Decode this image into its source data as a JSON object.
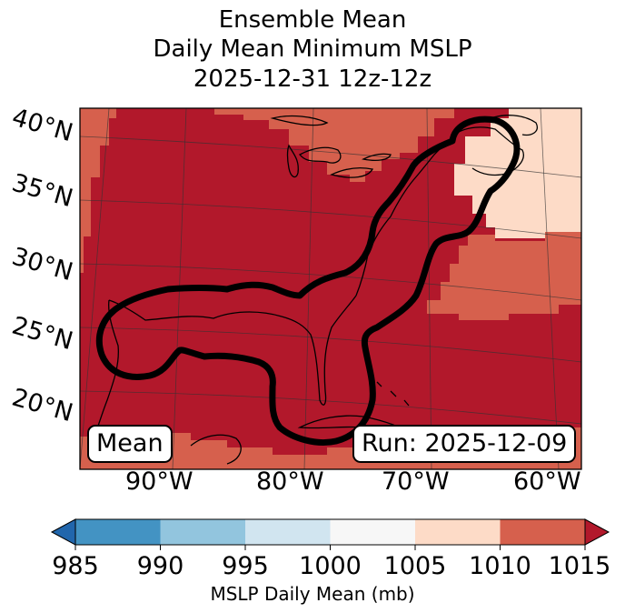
{
  "title": {
    "line1": "Ensemble Mean",
    "line2": "Daily Mean Minimum MSLP",
    "line3": "2025-12-31 12z-12z"
  },
  "map": {
    "lat_labels": [
      "40°N",
      "35°N",
      "30°N",
      "25°N",
      "20°N"
    ],
    "lon_labels": [
      "90°W",
      "80°W",
      "70°W",
      "60°W"
    ],
    "mean_badge": "Mean",
    "run_badge": "Run: 2025-12-09",
    "colors": {
      "band_1010_1015": "#b2182b",
      "band_1005_1010": "#d6604d",
      "band_1000_1005": "#fddbc7",
      "land_outline": "#000000",
      "contour": "#000000"
    }
  },
  "colorbar": {
    "ticks": [
      "985",
      "990",
      "995",
      "1000",
      "1005",
      "1010",
      "1015"
    ],
    "label": "MSLP Daily Mean (mb)",
    "colors": [
      "#2166ac",
      "#4393c3",
      "#92c5de",
      "#d1e5f0",
      "#f7f7f7",
      "#fddbc7",
      "#d6604d",
      "#b2182b"
    ]
  }
}
